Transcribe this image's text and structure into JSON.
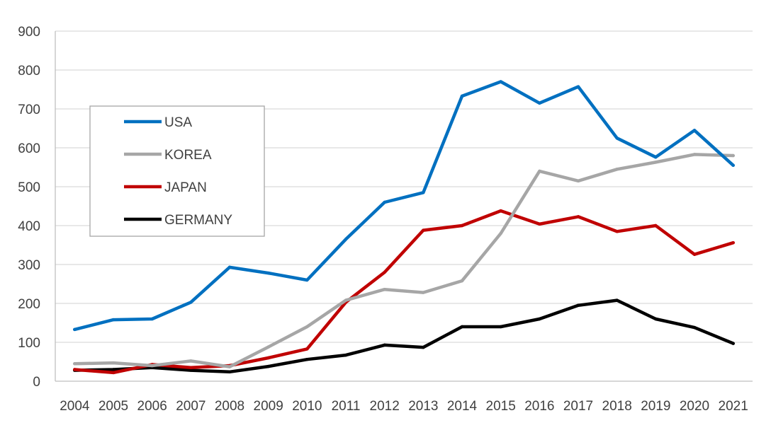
{
  "chart_data": {
    "type": "line",
    "title": "",
    "xlabel": "",
    "ylabel": "",
    "ylim": [
      0,
      900
    ],
    "yticks": [
      0,
      100,
      200,
      300,
      400,
      500,
      600,
      700,
      800,
      900
    ],
    "grid": "horizontal",
    "legend_position": "upper-left",
    "categories": [
      "2004",
      "2005",
      "2006",
      "2007",
      "2008",
      "2009",
      "2010",
      "2011",
      "2012",
      "2013",
      "2014",
      "2015",
      "2016",
      "2017",
      "2018",
      "2019",
      "2020",
      "2021"
    ],
    "series": [
      {
        "name": "USA",
        "color": "#0070C0",
        "values": [
          133,
          158,
          160,
          203,
          293,
          278,
          260,
          365,
          460,
          485,
          733,
          770,
          715,
          757,
          625,
          576,
          645,
          555
        ]
      },
      {
        "name": "KOREA",
        "color": "#A6A6A6",
        "values": [
          45,
          47,
          40,
          52,
          37,
          88,
          140,
          208,
          236,
          228,
          258,
          380,
          540,
          515,
          545,
          563,
          583,
          580
        ]
      },
      {
        "name": "JAPAN",
        "color": "#C00000",
        "values": [
          30,
          22,
          43,
          35,
          40,
          60,
          83,
          203,
          280,
          388,
          400,
          438,
          404,
          423,
          385,
          400,
          326,
          356
        ]
      },
      {
        "name": "GERMANY",
        "color": "#000000",
        "values": [
          28,
          30,
          35,
          28,
          24,
          38,
          56,
          67,
          93,
          87,
          140,
          140,
          160,
          195,
          208,
          160,
          138,
          97
        ]
      }
    ]
  }
}
